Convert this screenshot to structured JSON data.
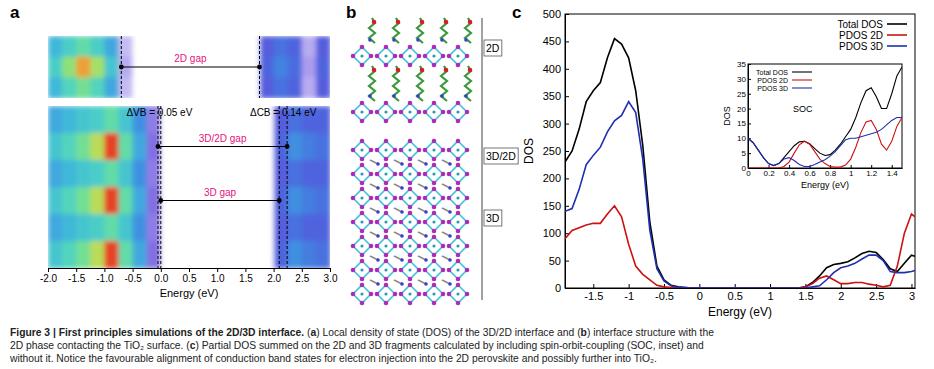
{
  "chart_data": [
    {
      "type": "heatmap",
      "title": "a",
      "x": [
        -2,
        -1.75,
        -1.5,
        -1.25,
        -1,
        -0.75,
        -0.5,
        -0.25,
        0,
        0.25,
        0.5,
        0.75,
        1,
        1.25,
        1.5,
        1.75,
        2,
        2.25,
        2.5,
        2.75,
        3
      ],
      "xlim": [
        -2,
        3
      ],
      "tick_labels": false,
      "zlim": [
        0,
        1
      ],
      "values": [
        [
          0.45,
          0.5,
          0.55,
          0.5,
          0.42,
          0.1,
          0,
          0,
          0,
          0,
          0,
          0,
          0,
          0,
          0,
          0.28,
          0.33,
          0.3,
          0.12,
          0.28
        ],
        [
          0.5,
          0.62,
          0.82,
          0.65,
          0.48,
          0.12,
          0,
          0,
          0,
          0,
          0,
          0,
          0,
          0,
          0,
          0.3,
          0.36,
          0.32,
          0.14,
          0.3
        ],
        [
          0.45,
          0.52,
          0.58,
          0.52,
          0.42,
          0.1,
          0,
          0,
          0,
          0,
          0,
          0,
          0,
          0,
          0,
          0.28,
          0.33,
          0.3,
          0.12,
          0.28
        ]
      ],
      "dashed_lines": [
        -0.7,
        1.75
      ],
      "annotations": [
        {
          "text": "2D gap",
          "x": [
            -0.7,
            1.75
          ]
        }
      ]
    },
    {
      "type": "heatmap",
      "x": [
        -2,
        -1.75,
        -1.5,
        -1.25,
        -1,
        -0.75,
        -0.5,
        -0.25,
        0,
        0.25,
        0.5,
        0.75,
        1,
        1.25,
        1.5,
        1.75,
        2,
        2.25,
        2.5,
        2.75,
        3
      ],
      "xlim": [
        -2,
        3
      ],
      "xticks": [
        {
          "value": -2,
          "label": "-2.0"
        },
        -1.5,
        {
          "value": -1,
          "label": "-1.0"
        },
        -0.5,
        {
          "value": 0,
          "label": "0.0"
        },
        0.5,
        {
          "value": 1,
          "label": "1.0"
        },
        1.5,
        {
          "value": 2,
          "label": "2.0"
        },
        2.5,
        {
          "value": 3,
          "label": "3.0"
        }
      ],
      "xlabel": "Energy (eV)",
      "tick_labels": "x",
      "zlim": [
        0,
        1
      ],
      "values": [
        [
          0.42,
          0.45,
          0.48,
          0.5,
          0.55,
          0.48,
          0.38,
          0.18,
          0,
          0,
          0,
          0,
          0,
          0,
          0,
          0,
          0.28,
          0.33,
          0.3,
          0.3
        ],
        [
          0.48,
          0.52,
          0.58,
          0.68,
          0.95,
          0.55,
          0.42,
          0.2,
          0,
          0,
          0,
          0,
          0,
          0,
          0,
          0,
          0.3,
          0.38,
          0.35,
          0.33
        ],
        [
          0.42,
          0.45,
          0.48,
          0.5,
          0.55,
          0.48,
          0.38,
          0.18,
          0,
          0,
          0,
          0,
          0,
          0,
          0,
          0,
          0.28,
          0.33,
          0.3,
          0.3
        ],
        [
          0.48,
          0.52,
          0.58,
          0.68,
          0.95,
          0.55,
          0.42,
          0.2,
          0,
          0,
          0,
          0,
          0,
          0,
          0,
          0,
          0.3,
          0.38,
          0.35,
          0.33
        ],
        [
          0.42,
          0.45,
          0.48,
          0.5,
          0.55,
          0.48,
          0.38,
          0.18,
          0,
          0,
          0,
          0,
          0,
          0,
          0,
          0,
          0.28,
          0.33,
          0.3,
          0.3
        ],
        [
          0.48,
          0.52,
          0.58,
          0.68,
          0.95,
          0.55,
          0.42,
          0.2,
          0,
          0,
          0,
          0,
          0,
          0,
          0,
          0,
          0.3,
          0.38,
          0.35,
          0.33
        ]
      ],
      "dashed_lines": [
        -0.05,
        0,
        2.1,
        2.24
      ],
      "annotations": [
        {
          "text": "ΔVB = 0.05 eV",
          "x": [
            -0.05,
            0
          ]
        },
        {
          "text": "ΔCB = 0.14 eV",
          "x": [
            2.1,
            2.24
          ]
        },
        {
          "text": "3D/2D gap",
          "x": [
            -0.05,
            2.24
          ]
        },
        {
          "text": "3D gap",
          "x": [
            0,
            2.1
          ]
        }
      ]
    },
    {
      "type": "line",
      "title": "c",
      "x": [
        -1.9,
        -1.8,
        -1.7,
        -1.6,
        -1.5,
        -1.4,
        -1.3,
        -1.2,
        -1.1,
        -1.0,
        -0.9,
        -0.8,
        -0.7,
        -0.6,
        -0.5,
        -0.4,
        -0.3,
        -0.2,
        -0.1,
        0,
        0.1,
        0.2,
        0.3,
        0.4,
        0.5,
        0.6,
        0.7,
        0.8,
        0.9,
        1.0,
        1.1,
        1.2,
        1.3,
        1.4,
        1.5,
        1.6,
        1.7,
        1.8,
        1.9,
        2.0,
        2.1,
        2.2,
        2.3,
        2.4,
        2.5,
        2.6,
        2.7,
        2.8,
        2.9,
        3.0,
        3.05
      ],
      "xlim": [
        -1.9,
        3.05
      ],
      "xticks": [
        -1.5,
        -1,
        -0.5,
        0,
        0.5,
        1,
        1.5,
        2,
        2.5,
        3
      ],
      "ylim": [
        0,
        500
      ],
      "yticks": [
        0,
        50,
        100,
        150,
        200,
        250,
        300,
        350,
        400,
        450,
        500
      ],
      "xlabel": "Energy (eV)",
      "ylabel": "DOS",
      "legend": "top-right",
      "series": [
        {
          "name": "Total DOS",
          "color": "#000000",
          "values": [
            230,
            250,
            290,
            340,
            360,
            375,
            420,
            455,
            445,
            420,
            360,
            260,
            120,
            40,
            15,
            5,
            2,
            1,
            0,
            0,
            0,
            0,
            0,
            0,
            0,
            0,
            0,
            0,
            0,
            0,
            0,
            0,
            0,
            0,
            2,
            10,
            22,
            37,
            43,
            45,
            48,
            55,
            63,
            67,
            65,
            52,
            35,
            30,
            45,
            60,
            58
          ]
        },
        {
          "name": "PDOS 2D",
          "color": "#cc1111",
          "values": [
            90,
            105,
            110,
            115,
            118,
            118,
            135,
            150,
            130,
            80,
            40,
            25,
            15,
            5,
            2,
            1,
            1,
            0,
            0,
            0,
            0,
            0,
            0,
            0,
            0,
            0,
            0,
            0,
            0,
            0,
            0,
            0,
            0,
            0,
            2,
            8,
            18,
            22,
            15,
            8,
            8,
            10,
            10,
            7,
            5,
            2,
            5,
            40,
            100,
            135,
            130
          ]
        },
        {
          "name": "PDOS 3D",
          "color": "#1f2fb0",
          "values": [
            140,
            145,
            180,
            225,
            242,
            257,
            285,
            305,
            315,
            340,
            320,
            235,
            105,
            35,
            13,
            4,
            1,
            1,
            0,
            0,
            0,
            0,
            0,
            0,
            0,
            0,
            0,
            0,
            0,
            0,
            0,
            0,
            0,
            0,
            0,
            2,
            4,
            15,
            28,
            37,
            40,
            45,
            53,
            60,
            60,
            50,
            30,
            28,
            28,
            30,
            32
          ]
        }
      ]
    },
    {
      "type": "line",
      "title": "SOC",
      "x": [
        0,
        0.05,
        0.1,
        0.15,
        0.2,
        0.25,
        0.3,
        0.35,
        0.4,
        0.45,
        0.5,
        0.55,
        0.6,
        0.65,
        0.7,
        0.75,
        0.8,
        0.85,
        0.9,
        0.95,
        1.0,
        1.05,
        1.1,
        1.15,
        1.2,
        1.25,
        1.3,
        1.35,
        1.4,
        1.45,
        1.5
      ],
      "xlim": [
        0,
        1.5
      ],
      "xticks": [
        0,
        0.2,
        0.4,
        0.6,
        0.8,
        1,
        1.2,
        1.4
      ],
      "ylim": [
        0,
        35
      ],
      "yticks": [
        0,
        5,
        10,
        15,
        20,
        25,
        30,
        35
      ],
      "xlabel": "Energy (eV)",
      "ylabel": "DOS",
      "legend": "top-left",
      "series": [
        {
          "name": "Total DOS",
          "color": "#000000",
          "values": [
            10,
            8.5,
            6,
            3.5,
            1.5,
            0.8,
            1.5,
            3.5,
            5.5,
            7.5,
            8.8,
            9,
            8.2,
            6.5,
            5,
            4.2,
            4.5,
            6,
            8,
            10.5,
            13,
            17,
            22,
            26,
            27,
            24,
            20,
            20,
            25,
            31,
            34
          ]
        },
        {
          "name": "PDOS 2D",
          "color": "#cc1111",
          "values": [
            0,
            0,
            0,
            0,
            0,
            0,
            0,
            0.5,
            2,
            5,
            7.8,
            9,
            8,
            5.5,
            3,
            1.5,
            0.5,
            0.3,
            0.3,
            1,
            3,
            7,
            12,
            15.5,
            16,
            13,
            8,
            6,
            9,
            14,
            17
          ]
        },
        {
          "name": "PDOS 3D",
          "color": "#1f2fb0",
          "values": [
            10,
            8.5,
            6,
            3.5,
            1.5,
            0.8,
            1.5,
            3,
            3.5,
            2.5,
            1.2,
            0.5,
            0.5,
            1.2,
            2,
            2.8,
            4,
            5.5,
            7.5,
            9.5,
            10,
            10,
            10.5,
            11,
            11.5,
            12,
            13,
            14.5,
            16,
            17,
            17
          ]
        }
      ]
    }
  ],
  "panel_b": {
    "title": "b",
    "labels": [
      "2D",
      "3D/2D",
      "3D"
    ]
  },
  "caption": [
    [
      {
        "text": "Figure 3 | First principles simulations of the 2D/3D interface.",
        "bold": true
      },
      {
        "text": " ("
      },
      {
        "text": "a",
        "bold": true
      },
      {
        "text": ") Local density of state (DOS) of the 3D/2D interface and ("
      },
      {
        "text": "b",
        "bold": true
      },
      {
        "text": ") interface structure with the"
      }
    ],
    [
      {
        "text": "2D phase contacting the TiO₂ surface. ("
      },
      {
        "text": "c",
        "bold": true
      },
      {
        "text": ") Partial DOS summed on the 2D and 3D fragments calculated by including spin-orbit-coupling (SOC, inset) and"
      }
    ],
    [
      {
        "text": "without it. Notice the favourable alignment of conduction band states for electron injection into the 2D perovskite and possibly further into TiO₂."
      }
    ]
  ]
}
